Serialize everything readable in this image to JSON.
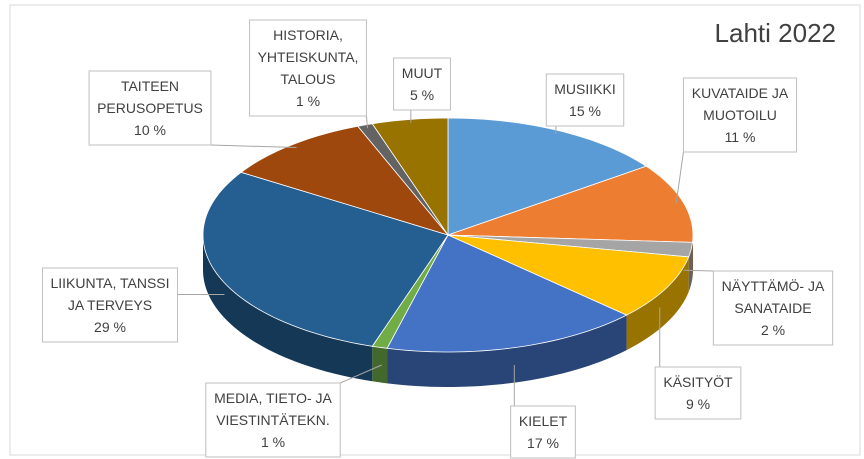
{
  "chart_data": {
    "type": "pie3d",
    "title": "Lahti 2022",
    "categories": [
      "MUSIIKKI",
      "KUVATAIDE JA\nMUOTOILU",
      "NÄYTTÄMÖ- JA\nSANATAIDE",
      "KÄSITYÖT",
      "KIELET",
      "MEDIA, TIETO- JA\nVIESTINTÄTEKN.",
      "LIIKUNTA, TANSSI\nJA TERVEYS",
      "TAITEEN\nPERUSOPETUS",
      "HISTORIA,\nYHTEISKUNTA,\nTALOUS",
      "MUUT"
    ],
    "values": [
      15,
      11,
      2,
      9,
      17,
      1,
      29,
      10,
      1,
      5
    ],
    "value_labels": [
      "15 %",
      "11 %",
      "2 %",
      "9 %",
      "17 %",
      "1 %",
      "29 %",
      "10 %",
      "1 %",
      "5 %"
    ],
    "colors": [
      "#5b9bd5",
      "#ed7d31",
      "#a5a5a5",
      "#ffc000",
      "#4472c4",
      "#70ad47",
      "#255e91",
      "#9e480e",
      "#636363",
      "#997300"
    ]
  }
}
